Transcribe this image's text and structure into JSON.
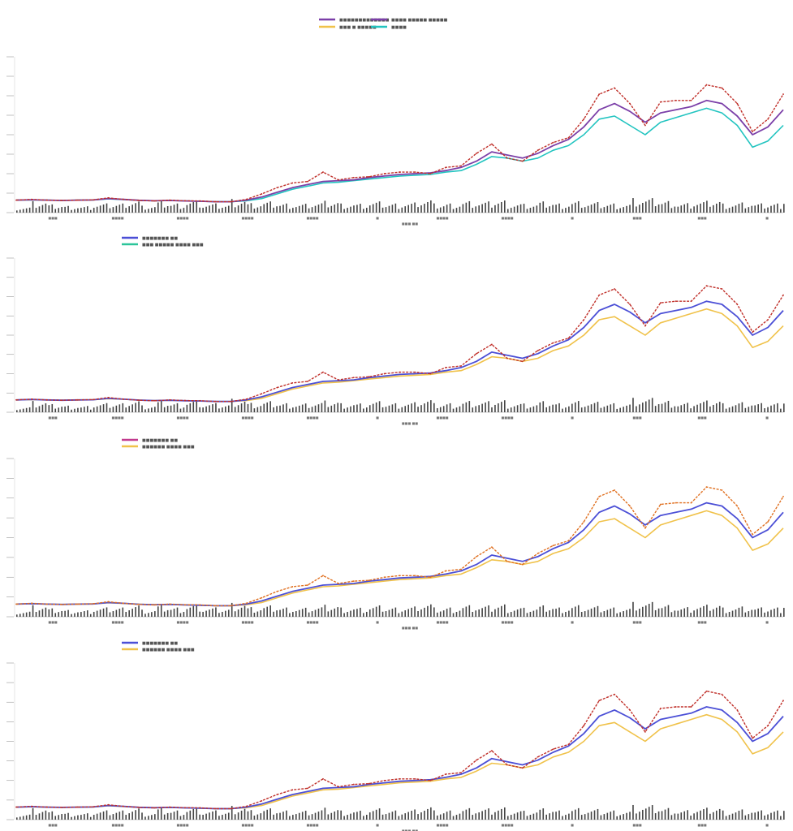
{
  "colors": {
    "purple": "#7b3fa8",
    "blue": "#4b4fd6",
    "teal": "#22c4c0",
    "green": "#2bc59a",
    "pink": "#c23a8e",
    "gold": "#f0c24a",
    "red": "#c0302a",
    "orange": "#e07020",
    "bar": "#444444"
  },
  "chart_data": [
    {
      "type": "line",
      "legend": [
        {
          "label": "■■■■■■■■■■■■■",
          "color": "purple"
        },
        {
          "label": "■■■■ ■■■■■ ■■■■■",
          "color": "purple"
        },
        {
          "label": "■■■ ■ ■■■■■",
          "color": "gold"
        },
        {
          "label": "■■■■",
          "color": "teal"
        }
      ],
      "price_color": "red",
      "smooth_color": "purple",
      "base_color": "teal",
      "ylim": [
        0,
        100
      ],
      "volume_max": 100
    },
    {
      "type": "line",
      "legend": [
        {
          "label": "■■■■■■■  ■■",
          "color": "blue"
        },
        {
          "label": "■■■ ■■■■■ ■■■■ ■■■",
          "color": "green"
        }
      ],
      "price_color": "red",
      "smooth_color": "blue",
      "base_color": "gold",
      "ylim": [
        0,
        100
      ],
      "volume_max": 100
    },
    {
      "type": "line",
      "legend": [
        {
          "label": "■■■■■■■  ■■",
          "color": "pink"
        },
        {
          "label": "■■■■■■ ■■■■ ■■■",
          "color": "gold"
        }
      ],
      "price_color": "orange",
      "smooth_color": "blue",
      "base_color": "gold",
      "ylim": [
        0,
        100
      ],
      "volume_max": 100
    },
    {
      "type": "line",
      "legend": [
        {
          "label": "■■■■■■■  ■■",
          "color": "blue"
        },
        {
          "label": "■■■■■■ ■■■■ ■■■",
          "color": "gold"
        }
      ],
      "price_color": "red",
      "smooth_color": "blue",
      "base_color": "gold",
      "ylim": [
        0,
        100
      ],
      "volume_max": 100
    }
  ],
  "shared_series": {
    "x": [
      0,
      2,
      4,
      6,
      8,
      10,
      12,
      14,
      16,
      18,
      20,
      22,
      24,
      26,
      28,
      30,
      32,
      34,
      36,
      38,
      40,
      42,
      44,
      46,
      48,
      50,
      52,
      54,
      56,
      58,
      60,
      62,
      64,
      66,
      68,
      70,
      72,
      74,
      76,
      78,
      80,
      82,
      84,
      86,
      88,
      90,
      92,
      94,
      96,
      98,
      100
    ],
    "price": [
      8,
      8.5,
      8,
      7.8,
      8,
      8.2,
      9.5,
      8.5,
      7.8,
      7.5,
      8,
      7.6,
      7.5,
      7,
      7,
      8.5,
      12,
      16,
      19,
      20,
      26,
      21,
      22.5,
      23,
      25,
      26,
      26,
      25,
      29,
      30,
      38,
      44,
      35,
      33,
      40,
      45,
      48,
      60,
      76,
      80,
      70,
      56,
      71,
      72,
      72,
      82,
      80,
      70,
      52,
      60,
      76
    ],
    "smooth": [
      8,
      8.3,
      8,
      7.8,
      8,
      8.1,
      9,
      8.5,
      7.9,
      7.6,
      7.8,
      7.5,
      7.3,
      7,
      7,
      8,
      10,
      13,
      16,
      18,
      20,
      20.5,
      21,
      22.5,
      23.5,
      24.5,
      25,
      25.5,
      27,
      29,
      33,
      39,
      37,
      35,
      38,
      43,
      47,
      55,
      66,
      70,
      65,
      58,
      64,
      66,
      68,
      72,
      70,
      62,
      50,
      55,
      66
    ],
    "base": [
      8,
      8.2,
      8,
      7.8,
      8,
      8.1,
      8.8,
      8.4,
      7.9,
      7.6,
      7.8,
      7.5,
      7.3,
      7,
      7,
      7.6,
      9,
      12,
      15,
      17,
      19,
      19.5,
      20.5,
      21.5,
      22.5,
      23.5,
      24,
      24.5,
      26,
      27,
      31,
      36,
      35,
      33,
      35,
      40,
      43,
      50,
      60,
      62,
      56,
      50,
      58,
      61,
      64,
      67,
      64,
      56,
      42,
      46,
      56
    ],
    "volume": [
      18,
      36,
      25,
      22,
      20,
      28,
      30,
      40,
      22,
      35,
      30,
      38,
      28,
      26,
      45,
      30,
      34,
      30,
      28,
      32,
      36,
      30,
      28,
      34,
      30,
      32,
      42,
      28,
      30,
      36,
      34,
      40,
      30,
      28,
      34,
      30,
      36,
      32,
      30,
      28,
      46,
      44,
      38,
      30,
      36,
      40,
      30,
      32,
      28,
      30,
      55
    ]
  }
}
